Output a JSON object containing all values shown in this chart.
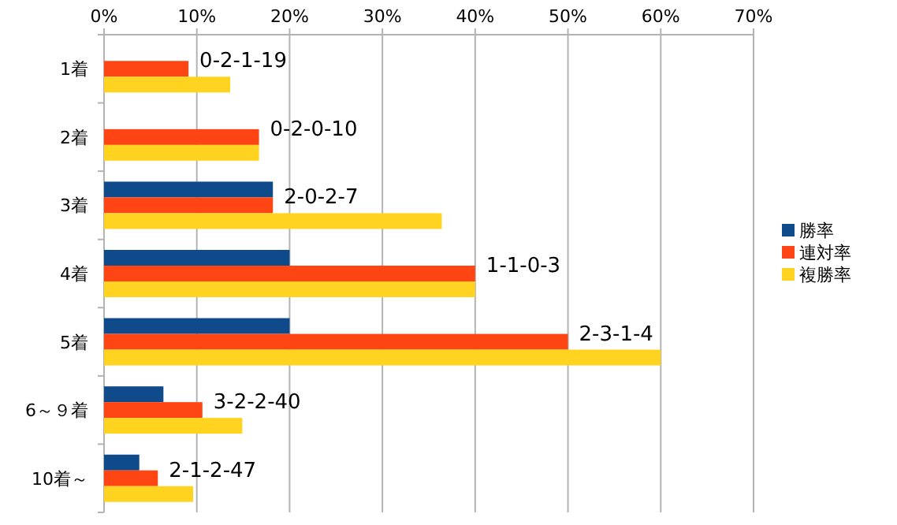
{
  "chart_data": {
    "type": "bar",
    "orientation": "horizontal",
    "categories": [
      "1着",
      "2着",
      "3着",
      "4着",
      "5着",
      "6～９着",
      "10着～"
    ],
    "series": [
      {
        "name": "勝率",
        "color": "#0f4a8a",
        "values": [
          0,
          0,
          18.2,
          20,
          20,
          6.4,
          3.8
        ]
      },
      {
        "name": "連対率",
        "color": "#ff4514",
        "values": [
          9.1,
          16.7,
          18.2,
          40,
          50,
          10.6,
          5.8
        ]
      },
      {
        "name": "複勝率",
        "color": "#ffd320",
        "values": [
          13.6,
          16.7,
          36.4,
          40,
          60,
          14.9,
          9.6
        ]
      }
    ],
    "xlim": [
      0,
      70
    ],
    "xticks": [
      {
        "value": 0,
        "label": "0%"
      },
      {
        "value": 10,
        "label": "10%"
      },
      {
        "value": 20,
        "label": "20%"
      },
      {
        "value": 30,
        "label": "30%"
      },
      {
        "value": 40,
        "label": "40%"
      },
      {
        "value": 50,
        "label": "50%"
      },
      {
        "value": 60,
        "label": "60%"
      },
      {
        "value": 70,
        "label": "70%"
      }
    ],
    "grid": "x",
    "legend": "right",
    "annotations": [
      {
        "text": "0-2-1-19",
        "x": 9.1,
        "y": "1着"
      },
      {
        "text": "0-2-0-10",
        "x": 16.7,
        "y": "2着"
      },
      {
        "text": "2-0-2-7",
        "x": 18.2,
        "y": "3着"
      },
      {
        "text": "1-1-0-3",
        "x": 40,
        "y": "4着"
      },
      {
        "text": "2-3-1-4",
        "x": 50,
        "y": "5着"
      },
      {
        "text": "3-2-2-40",
        "x": 10.6,
        "y": "6～９着"
      },
      {
        "text": "2-1-2-47",
        "x": 5.8,
        "y": "10着～"
      }
    ]
  }
}
